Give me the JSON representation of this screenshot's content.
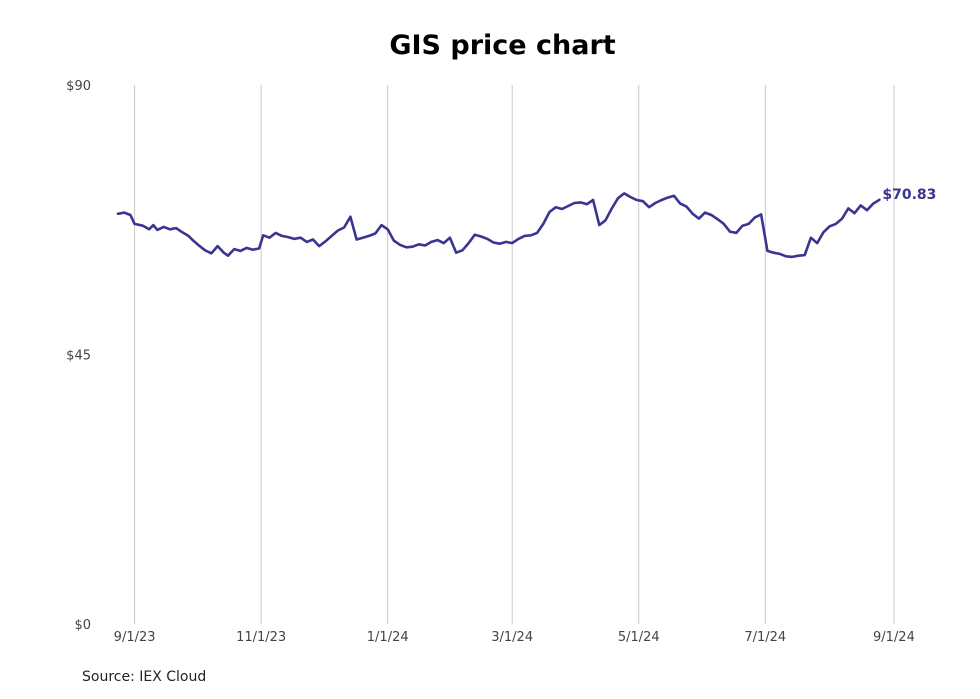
{
  "chart_data": {
    "type": "line",
    "title": "GIS price chart",
    "source": "Source: IEX Cloud",
    "xlabel": "",
    "ylabel": "",
    "y_ticks": [
      {
        "value": 0,
        "label": "$0"
      },
      {
        "value": 45,
        "label": "$45"
      },
      {
        "value": 90,
        "label": "$90"
      }
    ],
    "x_ticks": [
      {
        "date": "2023-09-01",
        "label": "9/1/23"
      },
      {
        "date": "2023-11-01",
        "label": "11/1/23"
      },
      {
        "date": "2024-01-01",
        "label": "1/1/24"
      },
      {
        "date": "2024-03-01",
        "label": "3/1/24"
      },
      {
        "date": "2024-05-01",
        "label": "5/1/24"
      },
      {
        "date": "2024-07-01",
        "label": "7/1/24"
      },
      {
        "date": "2024-09-01",
        "label": "9/1/24"
      }
    ],
    "xlim": [
      "2023-08-24",
      "2024-09-02"
    ],
    "ylim": [
      0,
      90
    ],
    "grid": "vertical",
    "line_color": "#3a3590",
    "end_label": "$70.83",
    "series": [
      {
        "x": [
          "2023-08-24",
          "2023-08-27",
          "2023-08-30",
          "2023-09-01",
          "2023-09-05",
          "2023-09-08",
          "2023-09-10",
          "2023-09-12",
          "2023-09-15",
          "2023-09-18",
          "2023-09-21",
          "2023-09-24",
          "2023-09-27",
          "2023-09-29",
          "2023-10-02",
          "2023-10-05",
          "2023-10-08",
          "2023-10-11",
          "2023-10-14",
          "2023-10-16",
          "2023-10-19",
          "2023-10-22",
          "2023-10-25",
          "2023-10-28",
          "2023-10-31",
          "2023-11-02",
          "2023-11-05",
          "2023-11-08",
          "2023-11-11",
          "2023-11-14",
          "2023-11-17",
          "2023-11-20",
          "2023-11-23",
          "2023-11-26",
          "2023-11-29",
          "2023-12-02",
          "2023-12-05",
          "2023-12-08",
          "2023-12-11",
          "2023-12-14",
          "2023-12-17",
          "2023-12-20",
          "2023-12-23",
          "2023-12-26",
          "2023-12-29",
          "2024-01-01",
          "2024-01-04",
          "2024-01-07",
          "2024-01-10",
          "2024-01-13",
          "2024-01-16",
          "2024-01-19",
          "2024-01-22",
          "2024-01-25",
          "2024-01-28",
          "2024-01-31",
          "2024-02-03",
          "2024-02-06",
          "2024-02-09",
          "2024-02-12",
          "2024-02-15",
          "2024-02-18",
          "2024-02-21",
          "2024-02-24",
          "2024-02-27",
          "2024-03-01",
          "2024-03-04",
          "2024-03-07",
          "2024-03-10",
          "2024-03-13",
          "2024-03-16",
          "2024-03-19",
          "2024-03-22",
          "2024-03-25",
          "2024-03-28",
          "2024-03-31",
          "2024-04-03",
          "2024-04-06",
          "2024-04-09",
          "2024-04-12",
          "2024-04-15",
          "2024-04-18",
          "2024-04-21",
          "2024-04-24",
          "2024-04-27",
          "2024-04-30",
          "2024-05-03",
          "2024-05-06",
          "2024-05-09",
          "2024-05-12",
          "2024-05-15",
          "2024-05-18",
          "2024-05-21",
          "2024-05-24",
          "2024-05-27",
          "2024-05-30",
          "2024-06-02",
          "2024-06-05",
          "2024-06-08",
          "2024-06-11",
          "2024-06-14",
          "2024-06-17",
          "2024-06-20",
          "2024-06-23",
          "2024-06-26",
          "2024-06-29",
          "2024-07-02",
          "2024-07-05",
          "2024-07-08",
          "2024-07-11",
          "2024-07-14",
          "2024-07-17",
          "2024-07-20",
          "2024-07-23",
          "2024-07-26",
          "2024-07-29",
          "2024-08-01",
          "2024-08-04",
          "2024-08-07",
          "2024-08-10",
          "2024-08-13",
          "2024-08-16",
          "2024-08-19",
          "2024-08-22",
          "2024-08-25"
        ],
        "y": [
          68.5,
          68.7,
          68.3,
          66.8,
          66.5,
          65.9,
          66.6,
          65.8,
          66.3,
          65.9,
          66.1,
          65.4,
          64.8,
          64.1,
          63.2,
          62.4,
          61.9,
          63.1,
          62.0,
          61.5,
          62.6,
          62.3,
          62.8,
          62.5,
          62.7,
          64.9,
          64.5,
          65.3,
          64.8,
          64.6,
          64.3,
          64.5,
          63.8,
          64.2,
          63.1,
          63.9,
          64.8,
          65.7,
          66.2,
          68.0,
          64.2,
          64.5,
          64.8,
          65.2,
          66.6,
          65.9,
          64.0,
          63.3,
          62.9,
          63.0,
          63.4,
          63.2,
          63.8,
          64.1,
          63.6,
          64.5,
          62.0,
          62.4,
          63.6,
          65.0,
          64.7,
          64.3,
          63.7,
          63.5,
          63.8,
          63.6,
          64.3,
          64.8,
          64.9,
          65.3,
          66.8,
          68.8,
          69.6,
          69.3,
          69.8,
          70.3,
          70.4,
          70.1,
          70.8,
          66.6,
          67.4,
          69.4,
          71.1,
          71.9,
          71.3,
          70.8,
          70.6,
          69.6,
          70.3,
          70.8,
          71.2,
          71.5,
          70.2,
          69.7,
          68.5,
          67.7,
          68.7,
          68.3,
          67.6,
          66.8,
          65.5,
          65.3,
          66.5,
          66.8,
          67.9,
          68.4,
          62.3,
          62.0,
          61.8,
          61.4,
          61.3,
          61.5,
          61.6,
          64.5,
          63.6,
          65.4,
          66.4,
          66.8,
          67.7,
          69.4,
          68.6,
          69.9,
          69.1,
          70.2,
          70.83
        ]
      }
    ]
  }
}
